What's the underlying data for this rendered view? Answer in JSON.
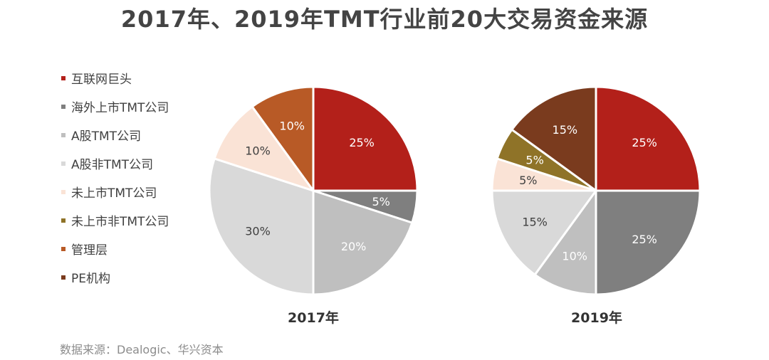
{
  "title": "2017年、2019年TMT行业前20大交易资金来源",
  "source": "数据来源：Dealogic、华兴资本",
  "legend": [
    {
      "label": "互联网巨头",
      "color": "#b3201a"
    },
    {
      "label": "海外上市TMT公司",
      "color": "#7f7f7f"
    },
    {
      "label": "A股TMT公司",
      "color": "#bfbfbf"
    },
    {
      "label": "A股非TMT公司",
      "color": "#d9d9d9"
    },
    {
      "label": "未上市TMT公司",
      "color": "#fae3d6"
    },
    {
      "label": "未上市非TMT公司",
      "color": "#8f7328"
    },
    {
      "label": "管理层",
      "color": "#b85a26"
    },
    {
      "label": "PE机构",
      "color": "#7a3b1e"
    }
  ],
  "chart_data": [
    {
      "type": "pie",
      "title": "2017年",
      "slices": [
        {
          "label": "互联网巨头",
          "value": 25,
          "display": "25%",
          "color": "#b3201a",
          "text_color": "#ffffff"
        },
        {
          "label": "海外上市TMT公司",
          "value": 5,
          "display": "5%",
          "color": "#7f7f7f",
          "text_color": "#ffffff"
        },
        {
          "label": "A股TMT公司",
          "value": 20,
          "display": "20%",
          "color": "#bfbfbf",
          "text_color": "#ffffff"
        },
        {
          "label": "A股非TMT公司",
          "value": 30,
          "display": "30%",
          "color": "#d9d9d9",
          "text_color": "#404040"
        },
        {
          "label": "未上市TMT公司",
          "value": 10,
          "display": "10%",
          "color": "#fae3d6",
          "text_color": "#404040"
        },
        {
          "label": "管理层",
          "value": 10,
          "display": "10%",
          "color": "#b85a26",
          "text_color": "#ffffff"
        }
      ]
    },
    {
      "type": "pie",
      "title": "2019年",
      "slices": [
        {
          "label": "互联网巨头",
          "value": 25,
          "display": "25%",
          "color": "#b3201a",
          "text_color": "#ffffff"
        },
        {
          "label": "海外上市TMT公司",
          "value": 25,
          "display": "25%",
          "color": "#7f7f7f",
          "text_color": "#ffffff"
        },
        {
          "label": "A股TMT公司",
          "value": 10,
          "display": "10%",
          "color": "#bfbfbf",
          "text_color": "#ffffff"
        },
        {
          "label": "A股非TMT公司",
          "value": 15,
          "display": "15%",
          "color": "#d9d9d9",
          "text_color": "#404040"
        },
        {
          "label": "未上市TMT公司",
          "value": 5,
          "display": "5%",
          "color": "#fae3d6",
          "text_color": "#404040"
        },
        {
          "label": "未上市非TMT公司",
          "value": 5,
          "display": "5%",
          "color": "#8f7328",
          "text_color": "#ffffff"
        },
        {
          "label": "PE机构",
          "value": 15,
          "display": "15%",
          "color": "#7a3b1e",
          "text_color": "#ffffff"
        }
      ]
    }
  ]
}
